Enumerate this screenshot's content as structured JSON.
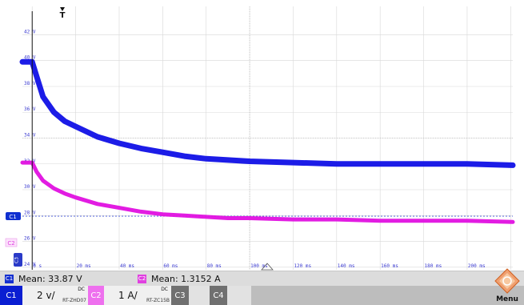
{
  "y_axis_labels": [
    "42 V",
    "40 V",
    "38 V",
    "36 V",
    "34 V",
    "32 V",
    "30 V",
    "28 V",
    "26 V",
    "24 V"
  ],
  "x_axis_labels": [
    "0 s",
    "20 ms",
    "40 ms",
    "60 ms",
    "80 ms",
    "100 ms",
    "120 ms",
    "140 ms",
    "160 ms",
    "180 ms",
    "200 ms"
  ],
  "trigger_label": "T",
  "markers": {
    "c1": "C1",
    "c2": "C2",
    "c3": "C3"
  },
  "colors": {
    "c1": "#1010e6",
    "c2": "#e010e0",
    "c3": "#3a3ac8",
    "c4": "#6e6e6e",
    "c1_tab": "#0a1ed2",
    "c2_tab": "#e85ae8"
  },
  "measurements": {
    "c1_label": "C1",
    "c1_text": "Mean: 33.87 V",
    "c2_label": "C2",
    "c2_text": "Mean: 1.3152 A"
  },
  "channels": {
    "c1": {
      "label": "C1",
      "value": "2 v/",
      "coupling": "DC",
      "probe": "RT-ZHD07"
    },
    "c2": {
      "label": "C2",
      "value": "1 A/",
      "coupling": "DC",
      "probe": "RT-ZC15B"
    },
    "c3": {
      "label": "C3"
    },
    "c4": {
      "label": "C4"
    }
  },
  "menu_label": "Menu",
  "chart_data": {
    "type": "line",
    "x_unit": "ms",
    "xlim": [
      -4.5,
      221
    ],
    "ylim": [
      23.8,
      44.2
    ],
    "series": [
      {
        "x": [
          -4.5,
          0,
          2,
          5,
          10,
          15,
          20,
          30,
          40,
          50,
          60,
          70,
          80,
          90,
          100,
          120,
          140,
          160,
          180,
          200,
          221
        ],
        "y": [
          39.9,
          39.9,
          38.8,
          37.2,
          36.0,
          35.3,
          34.9,
          34.1,
          33.6,
          33.2,
          32.9,
          32.6,
          32.4,
          32.3,
          32.2,
          32.1,
          32.0,
          32.0,
          32.0,
          32.0,
          31.9
        ]
      },
      {
        "x": [
          -4.5,
          0,
          2,
          5,
          10,
          15,
          20,
          30,
          40,
          50,
          60,
          70,
          80,
          90,
          100,
          120,
          140,
          160,
          180,
          200,
          221
        ],
        "y": [
          32.1,
          32.1,
          31.4,
          30.7,
          30.1,
          29.7,
          29.4,
          28.9,
          28.6,
          28.3,
          28.1,
          28.0,
          27.9,
          27.8,
          27.8,
          27.7,
          27.7,
          27.6,
          27.6,
          27.6,
          27.5
        ]
      }
    ],
    "reference_level": 27.95,
    "annotation": "Mean: 1.3152 A"
  }
}
